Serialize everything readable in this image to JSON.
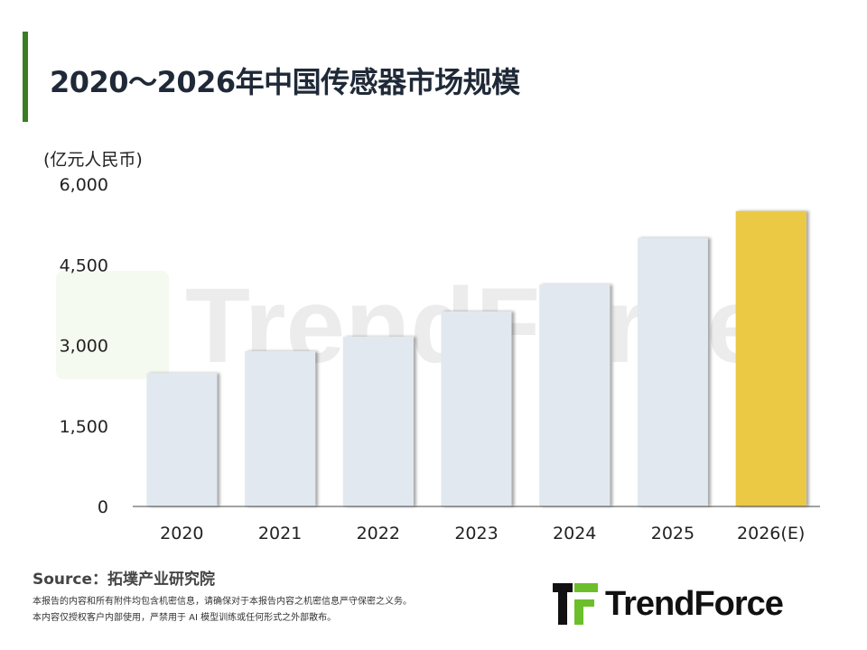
{
  "title": "2020～2026年中国传感器市场规模",
  "unit_label": "(亿元人民币)",
  "source": "Source：拓墣产业研究院",
  "notes": [
    "本报告的内容和所有附件均包含机密信息，请确保对于本报告内容之机密信息严守保密之义务。",
    "本内容仅授权客户内部使用，严禁用于 AI 模型训练或任何形式之外部散布。"
  ],
  "logo": {
    "text": "TrendForce",
    "watermark": "TrendForce"
  },
  "colors": {
    "accent": "#3a7d22",
    "bar": "#e1e8f0",
    "highlight": "#ebc945",
    "logo_green": "#6cbf2a"
  },
  "chart_data": {
    "type": "bar",
    "categories": [
      "2020",
      "2021",
      "2022",
      "2023",
      "2024",
      "2025",
      "2026(E)"
    ],
    "values": [
      2480,
      2890,
      3160,
      3630,
      4130,
      5000,
      5500
    ],
    "highlight_category": "2026(E)",
    "ylim": [
      0,
      6000
    ],
    "yticks": [
      0,
      1500,
      3000,
      4500,
      6000
    ],
    "ytick_labels": [
      "0",
      "1,500",
      "3,000",
      "4,500",
      "6,000"
    ],
    "ylabel": "(亿元人民币)",
    "grid": false
  }
}
